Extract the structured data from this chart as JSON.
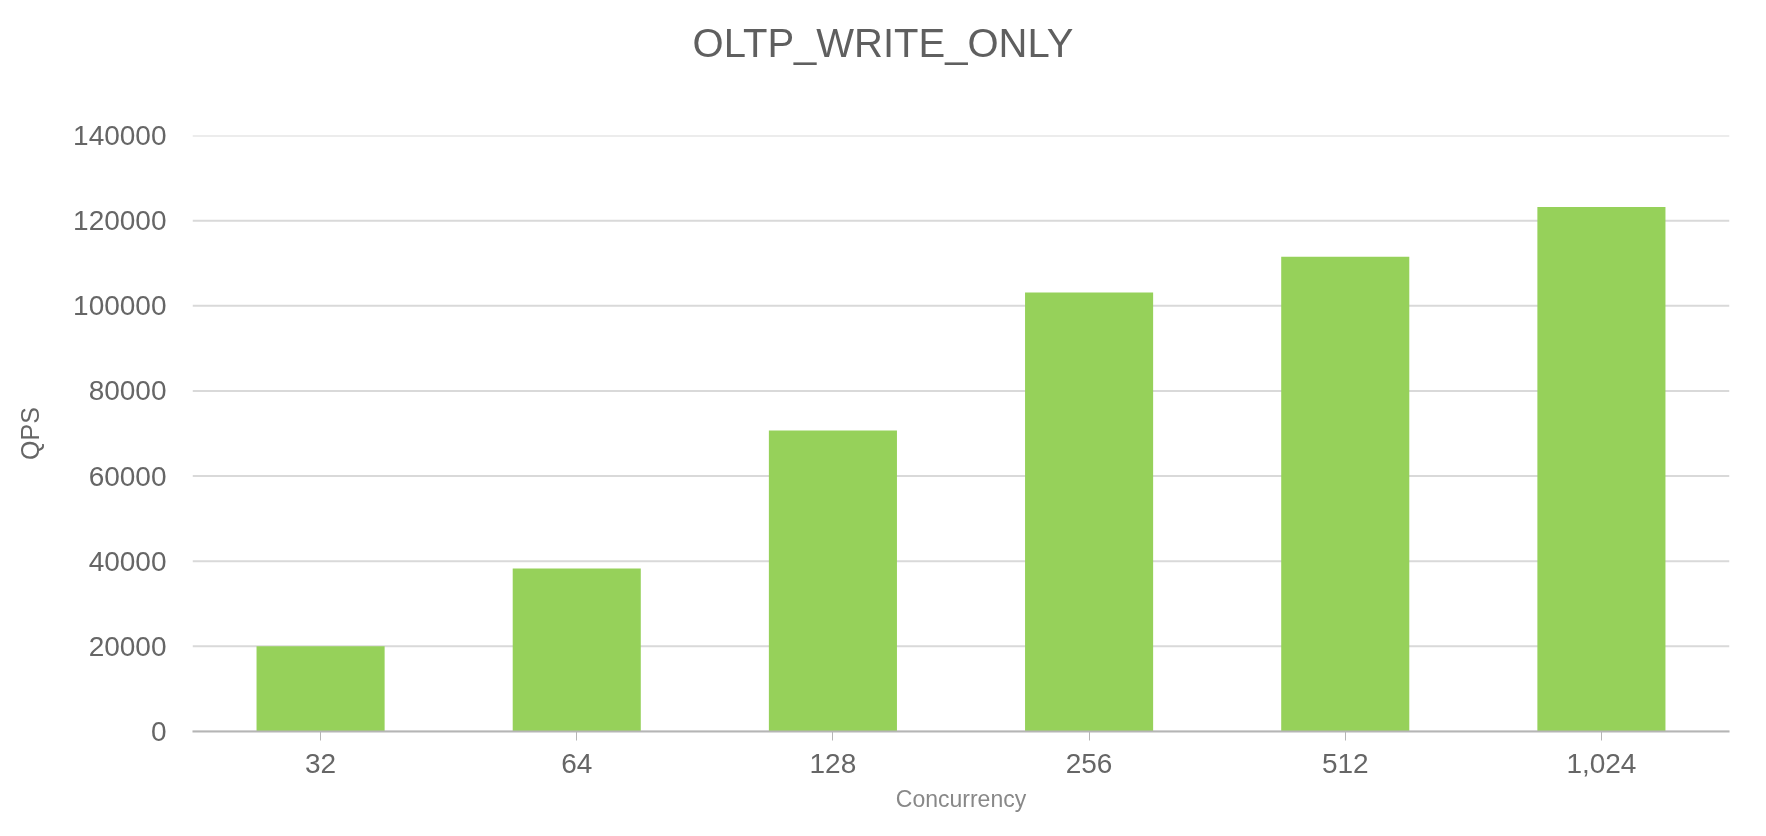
{
  "chart_data": {
    "type": "bar",
    "title": "OLTP_WRITE_ONLY",
    "xlabel": "Concurrency",
    "ylabel": "QPS",
    "categories": [
      "32",
      "64",
      "128",
      "256",
      "512",
      "1,024"
    ],
    "values": [
      20000,
      38300,
      70700,
      103100,
      111500,
      123200
    ],
    "color": "#96d15a",
    "ylim": [
      0,
      140000
    ],
    "yticks": [
      0,
      20000,
      40000,
      60000,
      80000,
      100000,
      120000,
      140000
    ],
    "grid": "y"
  }
}
